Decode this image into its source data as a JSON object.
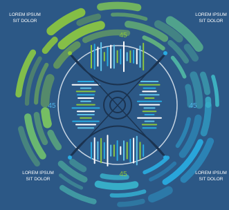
{
  "corner_labels": [
    {
      "line1": "LOREM IPSUM",
      "line2": "SIT DOLOR"
    },
    {
      "line1": "LOREM IPSUM",
      "line2": "SIT DOLOR"
    },
    {
      "line1": "LOREM IPSUM",
      "line2": "SIT DOLOR"
    },
    {
      "line1": "LOREM IPSUM",
      "line2": "SIT DOLOR"
    }
  ],
  "values": {
    "top": 45,
    "left": 45,
    "right": 45,
    "bottom": 45
  }
}
